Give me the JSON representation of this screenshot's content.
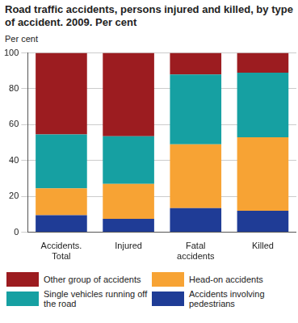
{
  "chart_data": {
    "type": "bar",
    "title": "Road traffic accidents, persons injured and killed, by type of accident. 2009. Per cent",
    "y_label": "Per cent",
    "categories": [
      "Accidents. Total",
      "Injured",
      "Fatal accidents",
      "Killed"
    ],
    "series": [
      {
        "name": "Accidents involving pedestrians",
        "color": "#1f3c96",
        "values": [
          9.5,
          7.5,
          13.5,
          12
        ]
      },
      {
        "name": "Head-on accidents",
        "color": "#f7a334",
        "values": [
          15,
          19.5,
          35.5,
          41
        ]
      },
      {
        "name": "Single vehicles running off the road",
        "color": "#16a0a2",
        "values": [
          30,
          26.5,
          39,
          36
        ]
      },
      {
        "name": "Other group of accidents",
        "color": "#9c1c20",
        "values": [
          45.5,
          46.5,
          12,
          11
        ]
      }
    ],
    "stacked": true,
    "ylim": [
      0,
      100
    ],
    "yticks": [
      0,
      20,
      40,
      60,
      80,
      100
    ],
    "grid": true,
    "legend": "bottom"
  }
}
